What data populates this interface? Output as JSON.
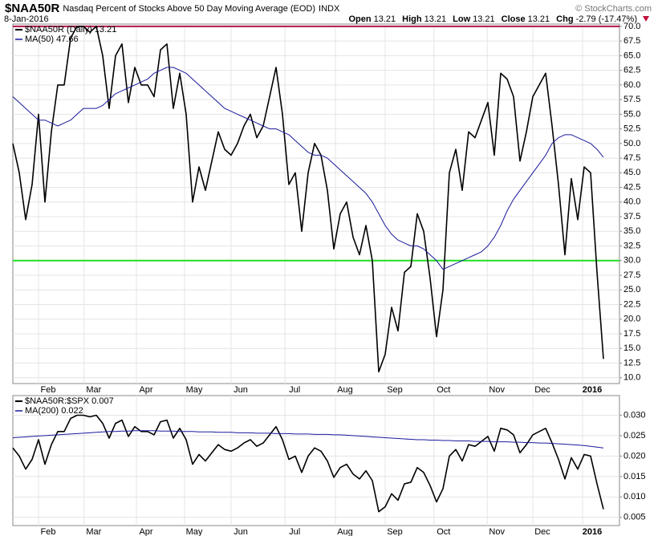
{
  "chart_data": [
    {
      "type": "line",
      "symbol": "$NAA50R",
      "title": "Nasdaq Percent of Stocks Above 50 Day Moving Average (EOD)",
      "exchange": "INDX",
      "date": "8-Jan-2016",
      "watermark": "© StockCharts.com",
      "quote": [
        {
          "label": "Open",
          "value": "13.21"
        },
        {
          "label": "High",
          "value": "13.21"
        },
        {
          "label": "Low",
          "value": "13.21"
        },
        {
          "label": "Close",
          "value": "13.21"
        },
        {
          "label": "Chg",
          "value": "-2.79 (-17.47%)"
        }
      ],
      "legend": "upper left",
      "grid": true,
      "xlim": [
        0,
        94.5
      ],
      "xticks": [
        {
          "value": 5.5,
          "label": "Feb"
        },
        {
          "value": 12.6,
          "label": "Mar"
        },
        {
          "value": 20.75,
          "label": "Apr"
        },
        {
          "value": 28.25,
          "label": "May"
        },
        {
          "value": 35.5,
          "label": "Jun"
        },
        {
          "value": 43.9,
          "label": "Jul"
        },
        {
          "value": 51.75,
          "label": "Aug"
        },
        {
          "value": 59.5,
          "label": "Sep"
        },
        {
          "value": 67.1,
          "label": "Oct"
        },
        {
          "value": 75.4,
          "label": "Nov"
        },
        {
          "value": 82.5,
          "label": "Dec"
        },
        {
          "value": 90.25,
          "label": "2016"
        }
      ],
      "ylim": [
        9,
        70.4
      ],
      "yticks": [
        {
          "value": 10,
          "label": "10.0"
        },
        12.5,
        {
          "value": 15,
          "label": "15.0"
        },
        17.5,
        {
          "value": 20,
          "label": "20.0"
        },
        22.5,
        {
          "value": 25,
          "label": "25.0"
        },
        27.5,
        {
          "value": 30,
          "label": "30.0"
        },
        32.5,
        {
          "value": 35,
          "label": "35.0"
        },
        37.5,
        {
          "value": 40,
          "label": "40.0"
        },
        42.5,
        {
          "value": 45,
          "label": "45.0"
        },
        47.5,
        {
          "value": 50,
          "label": "50.0"
        },
        52.5,
        {
          "value": 55,
          "label": "55.0"
        },
        57.5,
        {
          "value": 60,
          "label": "60.0"
        },
        62.5,
        {
          "value": 65,
          "label": "65.0"
        },
        67.5,
        {
          "value": 70,
          "label": "70.0"
        }
      ],
      "hlines": [
        {
          "value": 70,
          "color": "#b0174a"
        },
        {
          "value": 30,
          "color": "#22dd22"
        }
      ],
      "series": [
        {
          "name": "$NAA50R (Daily) 13.21",
          "color": "#000000",
          "width": 1.6,
          "values": [
            50,
            45,
            37,
            43,
            55,
            40,
            52,
            60,
            60,
            68,
            70,
            70,
            69,
            70,
            65,
            56,
            65,
            67,
            57,
            63,
            60,
            60,
            58,
            66,
            67,
            56,
            62,
            55,
            40,
            46,
            42,
            47,
            52,
            49,
            48,
            50,
            53,
            55,
            51,
            53,
            58,
            63,
            55,
            43,
            45,
            35,
            45,
            50,
            48,
            42,
            32,
            38,
            40,
            34,
            31,
            36,
            30,
            11,
            14,
            22,
            18,
            28,
            29,
            38,
            35,
            27,
            17,
            25,
            45,
            49,
            42,
            52,
            51,
            54,
            57,
            48,
            62,
            61,
            58,
            47,
            52,
            58,
            60,
            62,
            53,
            43,
            31,
            44,
            37,
            46,
            45,
            28,
            13.21
          ]
        },
        {
          "name": "MA(50) 47.66",
          "color": "#1a1a9c",
          "width": 1,
          "values": [
            58,
            57,
            56,
            55,
            54,
            54,
            53.5,
            53,
            53.5,
            54,
            55,
            56,
            56,
            56,
            56.5,
            57.5,
            58.5,
            59,
            59.5,
            60,
            60.5,
            61,
            62,
            62.5,
            63,
            63,
            62.5,
            62,
            61,
            60,
            59,
            58,
            57,
            56,
            55.5,
            55,
            54.5,
            54,
            53.5,
            53,
            52.5,
            52.5,
            52,
            51.5,
            50.5,
            49.5,
            48.5,
            48,
            48,
            47.5,
            46.5,
            45.5,
            44.5,
            43.5,
            42.5,
            41.5,
            40,
            38,
            36,
            34.5,
            33.5,
            33,
            32.5,
            32.5,
            32,
            31,
            30,
            28.5,
            29,
            29.5,
            30,
            30.5,
            31,
            31.5,
            32.5,
            34,
            36,
            38.5,
            40.5,
            42,
            43.5,
            45,
            46.5,
            48,
            50,
            51,
            51.5,
            51.5,
            51,
            50.5,
            50,
            49,
            47.66
          ]
        }
      ]
    },
    {
      "type": "line",
      "legend": "upper left",
      "grid": true,
      "xlim": [
        0,
        94.5
      ],
      "xticks": [
        {
          "value": 5.5,
          "label": "Feb"
        },
        {
          "value": 12.6,
          "label": "Mar"
        },
        {
          "value": 20.75,
          "label": "Apr"
        },
        {
          "value": 28.25,
          "label": "May"
        },
        {
          "value": 35.5,
          "label": "Jun"
        },
        {
          "value": 43.9,
          "label": "Jul"
        },
        {
          "value": 51.75,
          "label": "Aug"
        },
        {
          "value": 59.5,
          "label": "Sep"
        },
        {
          "value": 67.1,
          "label": "Oct"
        },
        {
          "value": 75.4,
          "label": "Nov"
        },
        {
          "value": 82.5,
          "label": "Dec"
        },
        {
          "value": 90.25,
          "label": "2016"
        }
      ],
      "ylim": [
        0.003,
        0.0348
      ],
      "yticks": [
        0.005,
        {
          "value": 0.01,
          "label": "0.010"
        },
        0.015,
        {
          "value": 0.02,
          "label": "0.020"
        },
        0.025,
        {
          "value": 0.03,
          "label": "0.030"
        }
      ],
      "series": [
        {
          "name": "$NAA50R:$SPX 0.007",
          "color": "#000000",
          "width": 1.6,
          "values": [
            0.022,
            0.02,
            0.0168,
            0.0192,
            0.024,
            0.018,
            0.0228,
            0.026,
            0.026,
            0.0292,
            0.03,
            0.03,
            0.0296,
            0.03,
            0.028,
            0.0244,
            0.028,
            0.0288,
            0.0248,
            0.0272,
            0.026,
            0.026,
            0.0252,
            0.0284,
            0.0288,
            0.0244,
            0.0268,
            0.024,
            0.018,
            0.0204,
            0.0188,
            0.0208,
            0.0228,
            0.0216,
            0.0212,
            0.022,
            0.0232,
            0.024,
            0.0224,
            0.0232,
            0.0252,
            0.0272,
            0.024,
            0.0192,
            0.02,
            0.016,
            0.02,
            0.022,
            0.0212,
            0.0188,
            0.0148,
            0.0172,
            0.018,
            0.0156,
            0.0144,
            0.0164,
            0.014,
            0.0064,
            0.0076,
            0.0108,
            0.0092,
            0.0132,
            0.0136,
            0.0172,
            0.016,
            0.0128,
            0.0088,
            0.012,
            0.02,
            0.0216,
            0.0188,
            0.0228,
            0.0224,
            0.0236,
            0.0248,
            0.0212,
            0.0268,
            0.0264,
            0.0252,
            0.0208,
            0.0228,
            0.0252,
            0.026,
            0.0268,
            0.0232,
            0.0192,
            0.0144,
            0.0196,
            0.0168,
            0.0204,
            0.02,
            0.0132,
            0.007
          ]
        },
        {
          "name": "MA(200) 0.022",
          "color": "#1a1a9c",
          "width": 1,
          "values": [
            0.0245,
            0.0246,
            0.0247,
            0.0248,
            0.0249,
            0.025,
            0.0251,
            0.0252,
            0.0253,
            0.0254,
            0.0255,
            0.0256,
            0.0257,
            0.0258,
            0.0259,
            0.026,
            0.026,
            0.0261,
            0.0261,
            0.0262,
            0.0262,
            0.0262,
            0.0262,
            0.0261,
            0.0261,
            0.0261,
            0.026,
            0.026,
            0.026,
            0.0259,
            0.0259,
            0.0259,
            0.0258,
            0.0258,
            0.0258,
            0.0257,
            0.0257,
            0.0257,
            0.0256,
            0.0256,
            0.0256,
            0.0255,
            0.0255,
            0.0255,
            0.0254,
            0.0254,
            0.0254,
            0.0253,
            0.0253,
            0.0253,
            0.0252,
            0.0252,
            0.0251,
            0.025,
            0.0249,
            0.0248,
            0.0247,
            0.0246,
            0.0245,
            0.0244,
            0.0243,
            0.0242,
            0.0241,
            0.024,
            0.024,
            0.0239,
            0.0239,
            0.0238,
            0.0238,
            0.0237,
            0.0237,
            0.0237,
            0.0236,
            0.0236,
            0.0236,
            0.0235,
            0.0235,
            0.0235,
            0.0234,
            0.0234,
            0.0233,
            0.0233,
            0.0232,
            0.0232,
            0.0231,
            0.023,
            0.0229,
            0.0228,
            0.0227,
            0.0226,
            0.0224,
            0.0222,
            0.022
          ]
        }
      ]
    }
  ]
}
